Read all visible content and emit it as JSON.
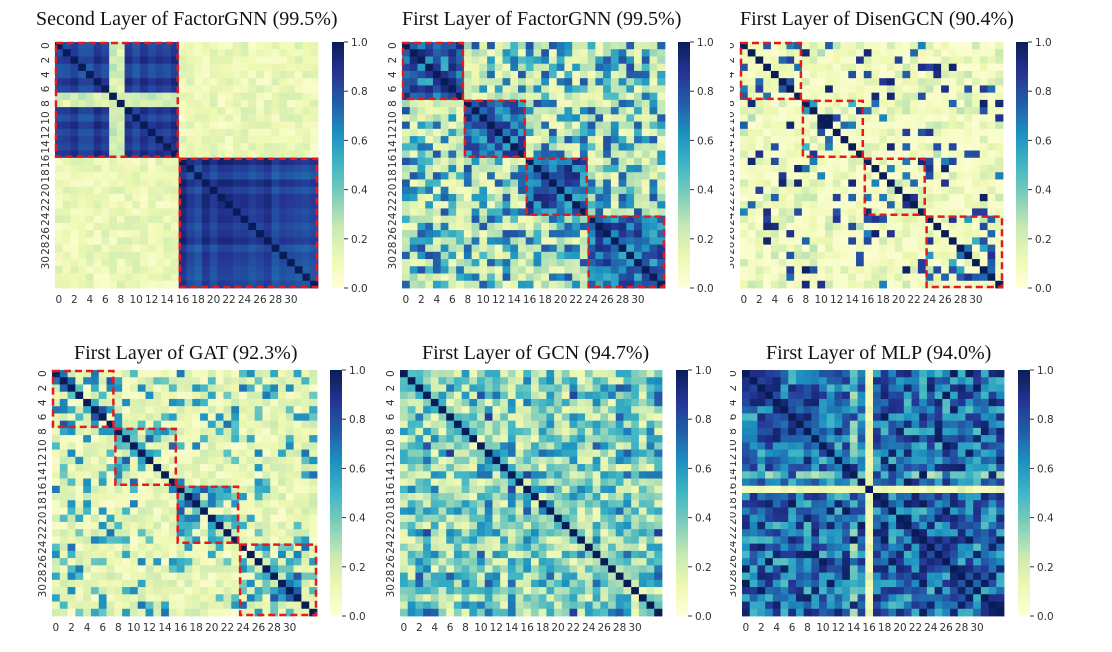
{
  "colorscale": [
    "#ffffd9",
    "#edf8b1",
    "#c7e9b4",
    "#7fcdbb",
    "#41b6c4",
    "#1d91c0",
    "#225ea8",
    "#253494",
    "#081d58"
  ],
  "box_color": "#e41a1c",
  "chart_data": [
    {
      "type": "heatmap",
      "title": "Second Layer of FactorGNN (99.5%)",
      "x_ticks": [
        "0",
        "2",
        "4",
        "6",
        "8",
        "10",
        "12",
        "14",
        "16",
        "18",
        "20",
        "22",
        "24",
        "26",
        "28",
        "30"
      ],
      "y_ticks": [
        "0",
        "2",
        "4",
        "6",
        "8",
        "10",
        "12",
        "14",
        "16",
        "18",
        "20",
        "22",
        "24",
        "26",
        "28",
        "30"
      ],
      "colorbar_ticks": [
        "0.0",
        "0.2",
        "0.4",
        "0.6",
        "0.8",
        "1.0"
      ],
      "vmin": 0,
      "vmax": 1,
      "size": 34,
      "pattern": "twoblock",
      "seed": 11,
      "groups": [
        [
          0,
          16
        ],
        [
          16,
          34
        ]
      ]
    },
    {
      "type": "heatmap",
      "title": "First Layer of FactorGNN (99.5%)",
      "x_ticks": [
        "0",
        "2",
        "4",
        "6",
        "8",
        "10",
        "12",
        "14",
        "16",
        "18",
        "20",
        "22",
        "24",
        "26",
        "28",
        "30"
      ],
      "y_ticks": [
        "0",
        "2",
        "4",
        "6",
        "8",
        "10",
        "12",
        "14",
        "16",
        "18",
        "20",
        "22",
        "24",
        "26",
        "28",
        "30"
      ],
      "colorbar_ticks": [
        "0.0",
        "0.2",
        "0.4",
        "0.6",
        "0.8",
        "1.0"
      ],
      "vmin": 0,
      "vmax": 1,
      "size": 34,
      "pattern": "blocks",
      "seed": 23,
      "groups": [
        [
          0,
          8
        ],
        [
          8,
          16
        ],
        [
          16,
          24
        ],
        [
          24,
          34
        ]
      ]
    },
    {
      "type": "heatmap",
      "title": "First Layer of DisenGCN (90.4%)",
      "x_ticks": [
        "0",
        "2",
        "4",
        "6",
        "8",
        "10",
        "12",
        "14",
        "16",
        "18",
        "20",
        "22",
        "24",
        "26",
        "28",
        "30"
      ],
      "y_ticks": [
        "0",
        "2",
        "4",
        "6",
        "8",
        "10",
        "12",
        "14",
        "16",
        "18",
        "20",
        "22",
        "24",
        "26",
        "28",
        "30"
      ],
      "colorbar_ticks": [
        "0.0",
        "0.2",
        "0.4",
        "0.6",
        "0.8",
        "1.0"
      ],
      "vmin": 0,
      "vmax": 1,
      "size": 34,
      "pattern": "sparse",
      "seed": 37,
      "groups": [
        [
          0,
          8
        ],
        [
          8,
          16
        ],
        [
          16,
          24
        ],
        [
          24,
          34
        ]
      ]
    },
    {
      "type": "heatmap",
      "title": "First Layer of GAT (92.3%)",
      "x_ticks": [
        "0",
        "2",
        "4",
        "6",
        "8",
        "10",
        "12",
        "14",
        "16",
        "18",
        "20",
        "22",
        "24",
        "26",
        "28",
        "30"
      ],
      "y_ticks": [
        "0",
        "2",
        "4",
        "6",
        "8",
        "10",
        "12",
        "14",
        "16",
        "18",
        "20",
        "22",
        "24",
        "26",
        "28",
        "30"
      ],
      "colorbar_ticks": [
        "0.0",
        "0.2",
        "0.4",
        "0.6",
        "0.8",
        "1.0"
      ],
      "vmin": 0,
      "vmax": 1,
      "size": 34,
      "pattern": "gat",
      "seed": 53,
      "groups": [
        [
          0,
          8
        ],
        [
          8,
          16
        ],
        [
          16,
          24
        ],
        [
          24,
          34
        ]
      ]
    },
    {
      "type": "heatmap",
      "title": "First Layer of GCN (94.7%)",
      "x_ticks": [
        "0",
        "2",
        "4",
        "6",
        "8",
        "10",
        "12",
        "14",
        "16",
        "18",
        "20",
        "22",
        "24",
        "26",
        "28",
        "30"
      ],
      "y_ticks": [
        "0",
        "2",
        "4",
        "6",
        "8",
        "10",
        "12",
        "14",
        "16",
        "18",
        "20",
        "22",
        "24",
        "26",
        "28",
        "30"
      ],
      "colorbar_ticks": [
        "0.0",
        "0.2",
        "0.4",
        "0.6",
        "0.8",
        "1.0"
      ],
      "vmin": 0,
      "vmax": 1,
      "size": 34,
      "pattern": "noisy",
      "seed": 71,
      "groups": []
    },
    {
      "type": "heatmap",
      "title": "First Layer of MLP (94.0%)",
      "x_ticks": [
        "0",
        "2",
        "4",
        "6",
        "8",
        "10",
        "12",
        "14",
        "16",
        "18",
        "20",
        "22",
        "24",
        "26",
        "28",
        "30"
      ],
      "y_ticks": [
        "0",
        "2",
        "4",
        "6",
        "8",
        "10",
        "12",
        "14",
        "16",
        "18",
        "20",
        "22",
        "24",
        "26",
        "28",
        "30"
      ],
      "colorbar_ticks": [
        "0.0",
        "0.2",
        "0.4",
        "0.6",
        "0.8",
        "1.0"
      ],
      "vmin": 0,
      "vmax": 1,
      "size": 34,
      "pattern": "dense",
      "seed": 89,
      "groups": []
    }
  ]
}
